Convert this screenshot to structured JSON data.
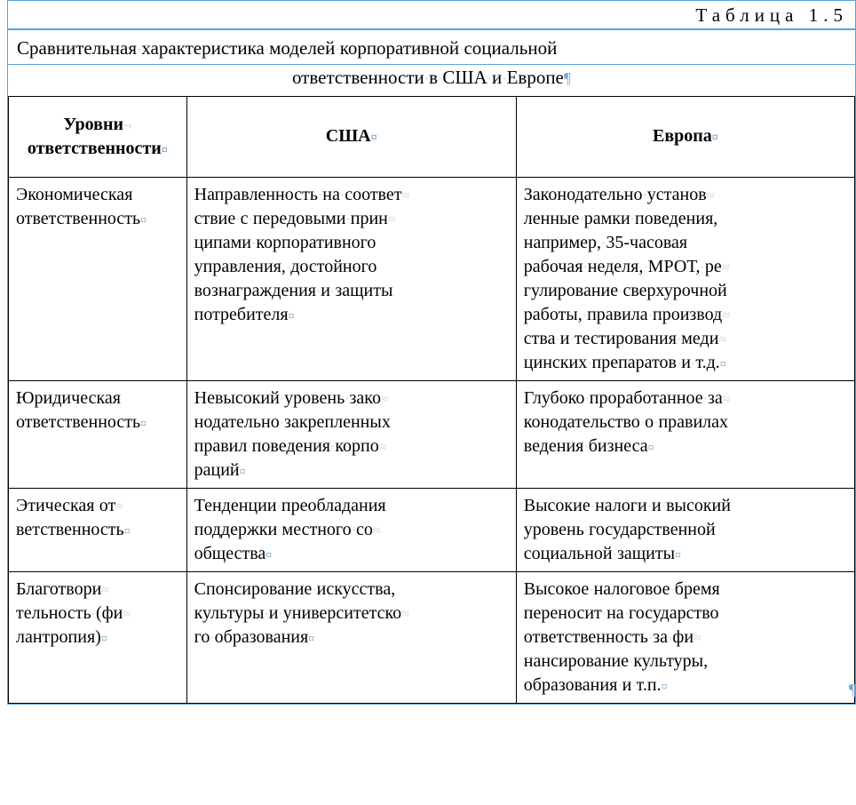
{
  "tableNumber": "Таблица 1.5",
  "titleLine1": "Сравнительная характеристика моделей корпоративной социальной",
  "titleLine2": "ответственности в США и Европе",
  "marks": {
    "dot": "·",
    "softHyphen": "¬",
    "optHyphen": "≈",
    "cellEnd": "¤",
    "pilcrow": "¶"
  },
  "columns": [
    "Уровни ответственности",
    "США",
    "Европа"
  ],
  "rows": [
    {
      "level_lines": [
        "Экономическая",
        "ответственность"
      ],
      "usa_lines": [
        "Направленность на соответ-",
        "ствие с передовыми прин-",
        "ципами корпоративного",
        "управления, достойного",
        "вознаграждения и защиты",
        "потребителя"
      ],
      "eu_lines": [
        "Законодательно установ-",
        "ленные рамки поведения,",
        "например, 35-часовая",
        "рабочая неделя, МРОТ, ре-",
        "гулирование сверхурочной",
        "работы, правила производ-",
        "ства и тестирования меди-",
        "цинских препаратов и т.д."
      ]
    },
    {
      "level_lines": [
        "Юридическая",
        "ответственность"
      ],
      "usa_lines": [
        "Невысокий уровень зако-",
        "нодательно закрепленных",
        "правил поведения корпо-",
        "раций"
      ],
      "eu_lines": [
        "Глубоко проработанное за-",
        "конодательство о правилах",
        "ведения бизнеса"
      ]
    },
    {
      "level_lines": [
        "Этическая от-",
        "ветственность"
      ],
      "usa_lines": [
        "Тенденции преобладания",
        "поддержки местного со-",
        "общества"
      ],
      "eu_lines": [
        "Высокие налоги и высокий",
        "уровень государственной",
        "социальной защиты"
      ]
    },
    {
      "level_lines": [
        "Благотвори-",
        "тельность (фи-",
        "лантропия)"
      ],
      "usa_lines": [
        "Спонсирование искусства,",
        "культуры и университетско-",
        "го образования"
      ],
      "eu_lines": [
        "Высокое налоговое бремя",
        "переносит на государство",
        "ответственность за фи-",
        "нансирование культуры,",
        "образования и т.п."
      ]
    }
  ]
}
